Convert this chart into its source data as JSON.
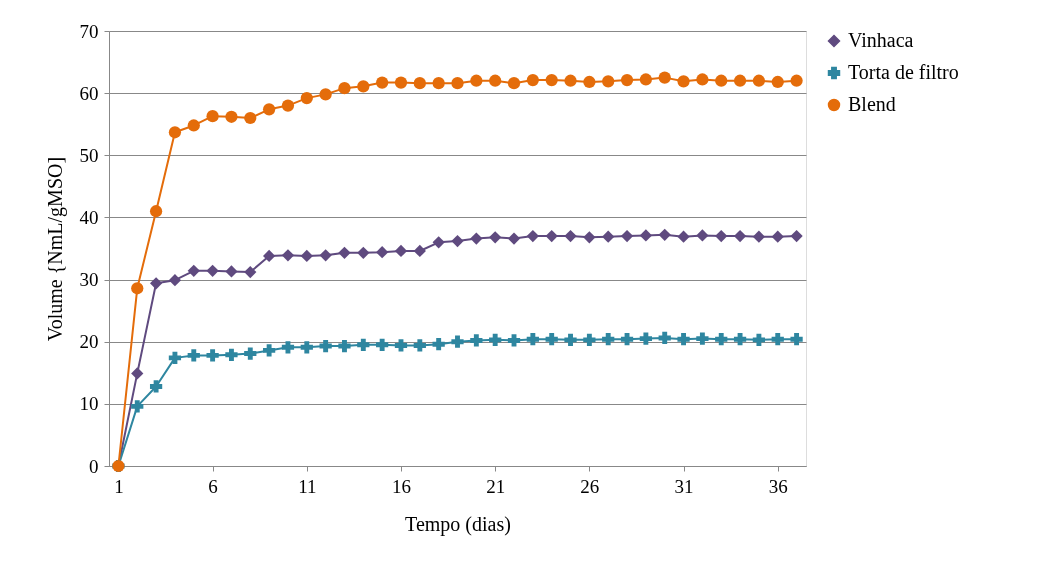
{
  "chart_data": {
    "type": "line",
    "xlabel": "Tempo (dias)",
    "ylabel": "Volume {NmL/gMSO]",
    "x": [
      1,
      2,
      3,
      4,
      5,
      6,
      7,
      8,
      9,
      10,
      11,
      12,
      13,
      14,
      15,
      16,
      17,
      18,
      19,
      20,
      21,
      22,
      23,
      24,
      25,
      26,
      27,
      28,
      29,
      30,
      31,
      32,
      33,
      34,
      35,
      36,
      37
    ],
    "series": [
      {
        "name": "Vinhaca",
        "color": "#5f4a7f",
        "marker": "diamond",
        "values": [
          0,
          14.9,
          29.4,
          29.9,
          31.4,
          31.4,
          31.3,
          31.2,
          33.8,
          33.9,
          33.8,
          33.9,
          34.3,
          34.3,
          34.4,
          34.6,
          34.6,
          36,
          36.2,
          36.6,
          36.8,
          36.6,
          37,
          37,
          37,
          36.8,
          36.9,
          37,
          37.1,
          37.2,
          36.9,
          37.1,
          37,
          37,
          36.9,
          36.9,
          37
        ]
      },
      {
        "name": "Torta de filtro",
        "color": "#2e86a0",
        "marker": "cross",
        "values": [
          0,
          9.6,
          12.8,
          17.4,
          17.8,
          17.8,
          17.9,
          18.1,
          18.6,
          19.1,
          19.1,
          19.3,
          19.3,
          19.5,
          19.5,
          19.4,
          19.4,
          19.6,
          20,
          20.2,
          20.3,
          20.2,
          20.4,
          20.4,
          20.3,
          20.3,
          20.4,
          20.4,
          20.5,
          20.6,
          20.4,
          20.5,
          20.4,
          20.4,
          20.3,
          20.4,
          20.4
        ]
      },
      {
        "name": "Blend",
        "color": "#e46c0a",
        "marker": "circle",
        "values": [
          0,
          28.6,
          41,
          53.7,
          54.8,
          56.3,
          56.2,
          56,
          57.4,
          58,
          59.2,
          59.8,
          60.8,
          61.1,
          61.7,
          61.7,
          61.6,
          61.6,
          61.6,
          62,
          62,
          61.6,
          62.1,
          62.1,
          62,
          61.8,
          61.9,
          62.1,
          62.2,
          62.5,
          61.9,
          62.2,
          62,
          62,
          62,
          61.8,
          62
        ]
      }
    ],
    "xlim": [
      0.5,
      37.5
    ],
    "xticks": [
      1,
      6,
      11,
      16,
      21,
      26,
      31,
      36
    ],
    "ylim": [
      0,
      70
    ],
    "yticks": [
      0,
      10,
      20,
      30,
      40,
      50,
      60,
      70
    ],
    "grid": "y",
    "legend": "right",
    "line_style": "solid"
  }
}
